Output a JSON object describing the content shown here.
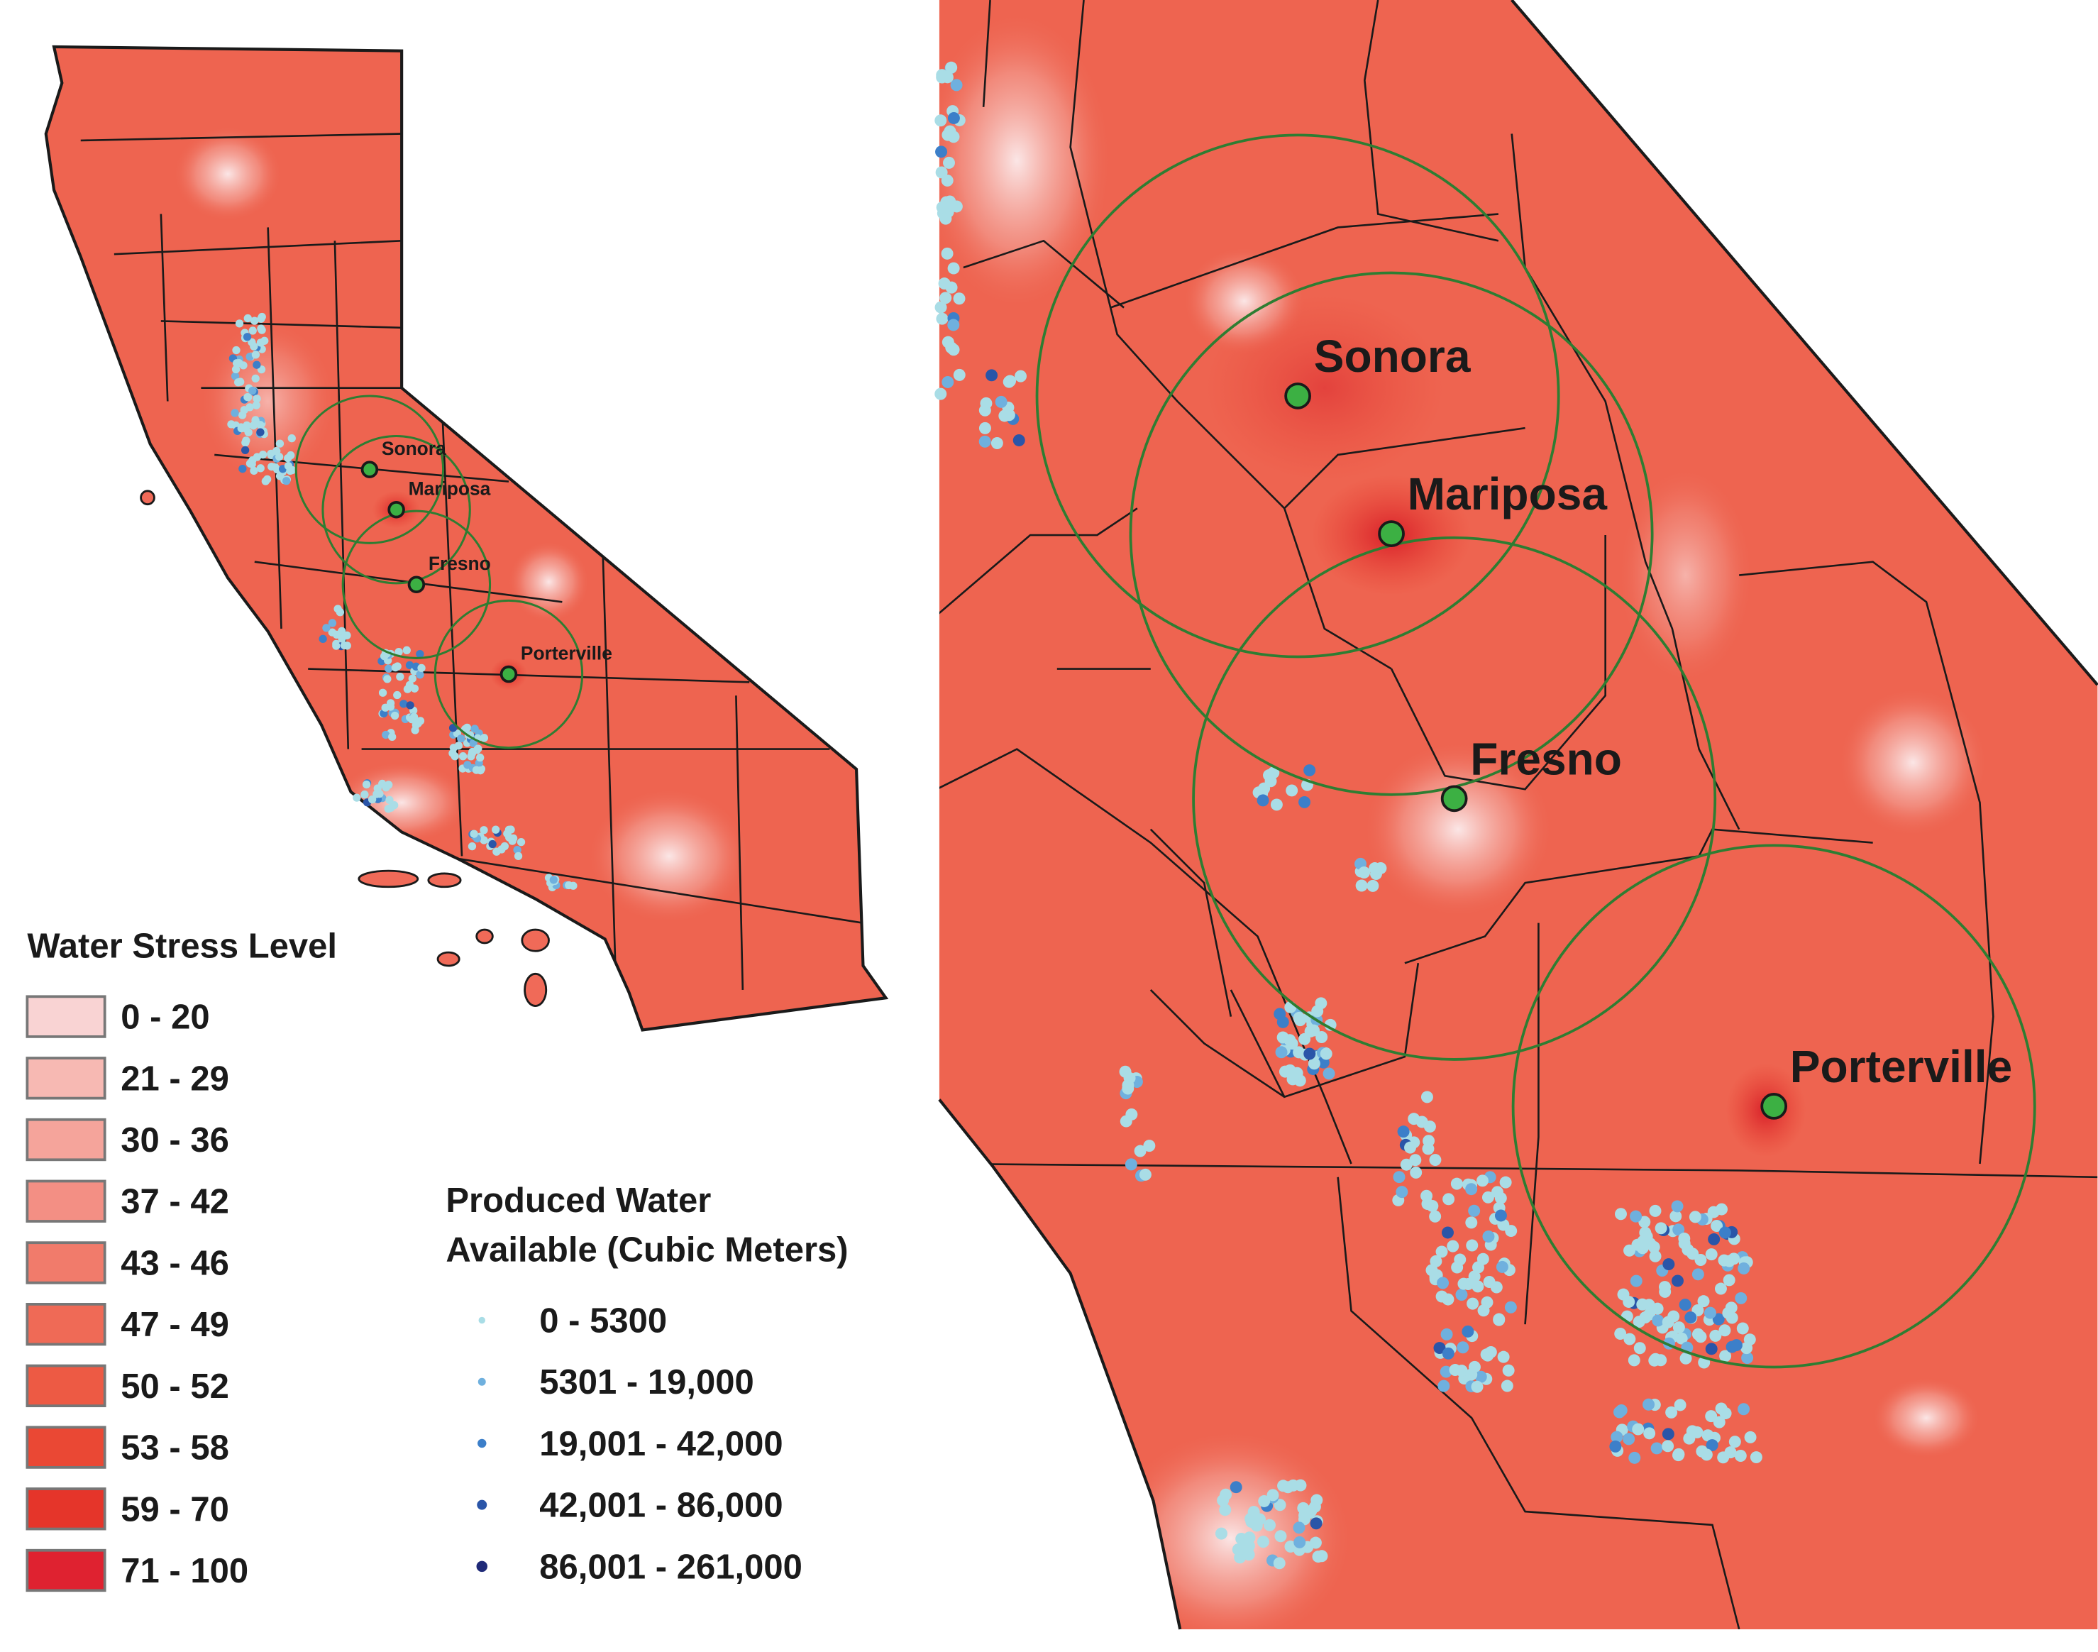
{
  "legends": {
    "water_stress": {
      "title": "Water Stress Level",
      "items": [
        {
          "label": "0 - 20",
          "color": "#f9d3d3"
        },
        {
          "label": "21 - 29",
          "color": "#f7b9b3"
        },
        {
          "label": "30 - 36",
          "color": "#f5a49b"
        },
        {
          "label": "37 - 42",
          "color": "#f38f84"
        },
        {
          "label": "43 - 46",
          "color": "#f17b6b"
        },
        {
          "label": "47 - 49",
          "color": "#ef6a56"
        },
        {
          "label": "50 - 52",
          "color": "#ed5a44"
        },
        {
          "label": "53 - 58",
          "color": "#ea4834"
        },
        {
          "label": "59 - 70",
          "color": "#e5352a"
        },
        {
          "label": "71 - 100",
          "color": "#df2230"
        }
      ]
    },
    "produced_water": {
      "title": [
        "Produced Water",
        "Available (Cubic Meters)"
      ],
      "items": [
        {
          "label": "0 - 5300",
          "color": "#a9dde6"
        },
        {
          "label": "5301 - 19,000",
          "color": "#6fb0de"
        },
        {
          "label": "19,001 - 42,000",
          "color": "#3c7fc9"
        },
        {
          "label": "42,001 - 86,000",
          "color": "#2a55a8"
        },
        {
          "label": "86,001 - 261,000",
          "color": "#1f2a78"
        }
      ]
    }
  },
  "cities": [
    {
      "name": "Sonora"
    },
    {
      "name": "Mariposa"
    },
    {
      "name": "Fresno"
    },
    {
      "name": "Porterville"
    }
  ]
}
